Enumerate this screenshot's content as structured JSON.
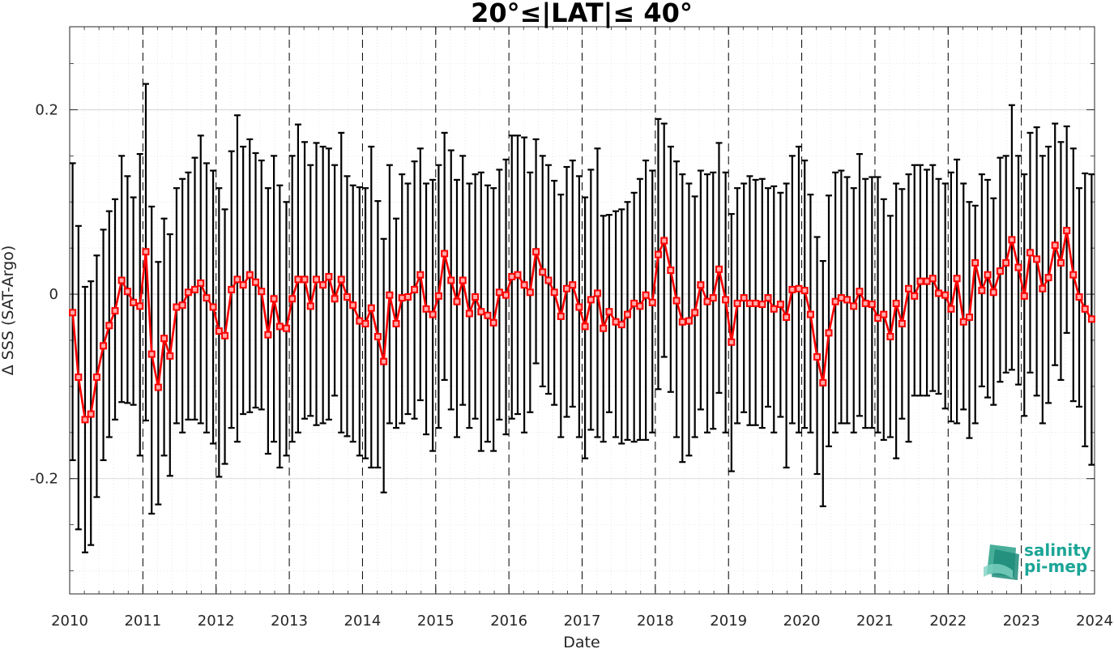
{
  "chart_data": {
    "type": "line",
    "title": "20°≤|LAT|≤ 40°",
    "xlabel": "Date",
    "ylabel": "Δ SSS (SAT-Argo)",
    "xlim": [
      2010,
      2024
    ],
    "ylim": [
      -0.325,
      0.29
    ],
    "x_ticks": [
      "2010",
      "2011",
      "2012",
      "2013",
      "2014",
      "2015",
      "2016",
      "2017",
      "2018",
      "2019",
      "2020",
      "2021",
      "2022",
      "2023",
      "2024"
    ],
    "y_ticks": [
      "0.2",
      "0",
      "-0.2"
    ],
    "y_tick_values": [
      0.2,
      0,
      -0.2
    ],
    "grid": true,
    "year_divider_lines": true,
    "colors": {
      "line": "#ff0000",
      "errorbar": "#000000",
      "grid": "#d9d9d9",
      "divider": "#000000"
    },
    "series": [
      {
        "marker": "square",
        "x": [
          2010.04,
          2010.12,
          2010.21,
          2010.29,
          2010.37,
          2010.46,
          2010.54,
          2010.62,
          2010.71,
          2010.79,
          2010.87,
          2010.96,
          2011.04,
          2011.12,
          2011.21,
          2011.29,
          2011.37,
          2011.46,
          2011.54,
          2011.62,
          2011.71,
          2011.79,
          2011.87,
          2011.96,
          2012.04,
          2012.12,
          2012.21,
          2012.29,
          2012.37,
          2012.46,
          2012.54,
          2012.62,
          2012.71,
          2012.79,
          2012.87,
          2012.96,
          2013.04,
          2013.12,
          2013.21,
          2013.29,
          2013.37,
          2013.46,
          2013.54,
          2013.62,
          2013.71,
          2013.79,
          2013.87,
          2013.96,
          2014.04,
          2014.12,
          2014.21,
          2014.29,
          2014.37,
          2014.46,
          2014.54,
          2014.62,
          2014.71,
          2014.79,
          2014.87,
          2014.96,
          2015.04,
          2015.12,
          2015.21,
          2015.29,
          2015.37,
          2015.46,
          2015.54,
          2015.62,
          2015.71,
          2015.79,
          2015.87,
          2015.96,
          2016.04,
          2016.12,
          2016.21,
          2016.29,
          2016.37,
          2016.46,
          2016.54,
          2016.62,
          2016.71,
          2016.79,
          2016.87,
          2016.96,
          2017.04,
          2017.12,
          2017.21,
          2017.29,
          2017.37,
          2017.46,
          2017.54,
          2017.62,
          2017.71,
          2017.79,
          2017.87,
          2017.96,
          2018.04,
          2018.12,
          2018.21,
          2018.29,
          2018.37,
          2018.46,
          2018.54,
          2018.62,
          2018.71,
          2018.79,
          2018.87,
          2018.96,
          2019.04,
          2019.12,
          2019.21,
          2019.29,
          2019.37,
          2019.46,
          2019.54,
          2019.62,
          2019.71,
          2019.79,
          2019.87,
          2019.96,
          2020.04,
          2020.12,
          2020.21,
          2020.29,
          2020.37,
          2020.46,
          2020.54,
          2020.62,
          2020.71,
          2020.79,
          2020.87,
          2020.96,
          2021.04,
          2021.12,
          2021.21,
          2021.29,
          2021.37,
          2021.46,
          2021.54,
          2021.62,
          2021.71,
          2021.79,
          2021.87,
          2021.96,
          2022.04,
          2022.12,
          2022.21,
          2022.29,
          2022.37,
          2022.46,
          2022.54,
          2022.62,
          2022.71,
          2022.79,
          2022.87,
          2022.96,
          2023.04,
          2023.12,
          2023.21,
          2023.29,
          2023.37,
          2023.46,
          2023.54,
          2023.62,
          2023.71,
          2023.79,
          2023.87,
          2023.96
        ],
        "y": [
          -0.02,
          -0.09,
          -0.136,
          -0.13,
          -0.09,
          -0.056,
          -0.034,
          -0.018,
          0.015,
          0.003,
          -0.009,
          -0.013,
          0.046,
          -0.065,
          -0.101,
          -0.048,
          -0.067,
          -0.014,
          -0.012,
          0.002,
          0.005,
          0.012,
          -0.004,
          -0.014,
          -0.04,
          -0.045,
          0.005,
          0.016,
          0.01,
          0.021,
          0.013,
          0.003,
          -0.044,
          -0.005,
          -0.035,
          -0.037,
          -0.005,
          0.016,
          0.016,
          -0.013,
          0.016,
          0.01,
          0.019,
          -0.005,
          0.016,
          -0.003,
          -0.012,
          -0.029,
          -0.032,
          -0.015,
          -0.046,
          -0.073,
          -0.001,
          -0.032,
          -0.004,
          -0.003,
          0.005,
          0.021,
          -0.016,
          -0.022,
          -0.002,
          0.044,
          0.015,
          -0.008,
          0.015,
          -0.021,
          -0.003,
          -0.019,
          -0.023,
          -0.031,
          0.002,
          -0.001,
          0.019,
          0.021,
          0.01,
          0.002,
          0.046,
          0.024,
          0.015,
          0.002,
          -0.024,
          0.006,
          0.01,
          -0.014,
          -0.035,
          -0.006,
          0.001,
          -0.037,
          -0.019,
          -0.03,
          -0.033,
          -0.022,
          -0.01,
          -0.013,
          -0.001,
          -0.009,
          0.043,
          0.058,
          0.026,
          -0.007,
          -0.03,
          -0.029,
          -0.02,
          0.01,
          -0.008,
          -0.004,
          0.027,
          -0.006,
          -0.052,
          -0.01,
          -0.004,
          -0.01,
          -0.01,
          -0.011,
          -0.004,
          -0.016,
          -0.011,
          -0.025,
          0.005,
          0.006,
          0.004,
          -0.022,
          -0.068,
          -0.096,
          -0.042,
          -0.008,
          -0.004,
          -0.006,
          -0.013,
          0.003,
          -0.01,
          -0.011,
          -0.026,
          -0.022,
          -0.046,
          -0.01,
          -0.032,
          0.006,
          -0.002,
          0.014,
          0.014,
          0.017,
          0.001,
          -0.001,
          -0.016,
          0.017,
          -0.03,
          -0.025,
          0.034,
          0.004,
          0.021,
          0.002,
          0.025,
          0.034,
          0.059,
          0.029,
          -0.002,
          0.045,
          0.038,
          0.006,
          0.018,
          0.053,
          0.034,
          0.069,
          0.021,
          -0.003,
          -0.016,
          -0.027
        ],
        "err_upper": [
          0.142,
          0.074,
          0.008,
          0.014,
          0.042,
          0.07,
          0.09,
          0.103,
          0.15,
          0.128,
          0.105,
          0.152,
          0.228,
          0.095,
          0.035,
          0.082,
          0.065,
          0.115,
          0.125,
          0.132,
          0.148,
          0.172,
          0.142,
          0.134,
          0.115,
          0.092,
          0.155,
          0.194,
          0.16,
          0.168,
          0.153,
          0.145,
          0.115,
          0.15,
          0.118,
          0.1,
          0.15,
          0.184,
          0.165,
          0.14,
          0.164,
          0.16,
          0.158,
          0.14,
          0.175,
          0.128,
          0.118,
          0.116,
          0.115,
          0.16,
          0.101,
          0.06,
          0.14,
          0.082,
          0.13,
          0.12,
          0.144,
          0.158,
          0.12,
          0.124,
          0.14,
          0.175,
          0.156,
          0.124,
          0.15,
          0.12,
          0.13,
          0.132,
          0.118,
          0.115,
          0.135,
          0.146,
          0.172,
          0.172,
          0.17,
          0.132,
          0.168,
          0.15,
          0.14,
          0.123,
          0.108,
          0.138,
          0.145,
          0.128,
          0.105,
          0.135,
          0.158,
          0.085,
          0.086,
          0.09,
          0.092,
          0.1,
          0.11,
          0.125,
          0.145,
          0.134,
          0.19,
          0.185,
          0.16,
          0.144,
          0.13,
          0.12,
          0.106,
          0.134,
          0.13,
          0.132,
          0.164,
          0.132,
          0.087,
          0.115,
          0.12,
          0.128,
          0.124,
          0.125,
          0.115,
          0.117,
          0.11,
          0.12,
          0.15,
          0.16,
          0.145,
          0.108,
          0.062,
          0.036,
          0.107,
          0.132,
          0.134,
          0.127,
          0.115,
          0.152,
          0.125,
          0.127,
          0.127,
          0.103,
          0.085,
          0.12,
          0.114,
          0.13,
          0.14,
          0.14,
          0.135,
          0.14,
          0.125,
          0.12,
          0.132,
          0.146,
          0.12,
          0.1,
          0.096,
          0.13,
          0.124,
          0.104,
          0.148,
          0.15,
          0.205,
          0.15,
          0.13,
          0.175,
          0.181,
          0.15,
          0.16,
          0.185,
          0.165,
          0.182,
          0.158,
          0.115,
          0.131,
          0.13
        ],
        "err_lower": [
          -0.18,
          -0.255,
          -0.28,
          -0.272,
          -0.22,
          -0.18,
          -0.155,
          -0.136,
          -0.117,
          -0.118,
          -0.12,
          -0.175,
          -0.137,
          -0.238,
          -0.228,
          -0.175,
          -0.197,
          -0.14,
          -0.15,
          -0.136,
          -0.136,
          -0.14,
          -0.15,
          -0.162,
          -0.198,
          -0.184,
          -0.145,
          -0.16,
          -0.13,
          -0.128,
          -0.123,
          -0.125,
          -0.173,
          -0.16,
          -0.188,
          -0.175,
          -0.16,
          -0.15,
          -0.135,
          -0.132,
          -0.142,
          -0.14,
          -0.136,
          -0.11,
          -0.15,
          -0.154,
          -0.16,
          -0.175,
          -0.178,
          -0.188,
          -0.188,
          -0.215,
          -0.14,
          -0.145,
          -0.14,
          -0.13,
          -0.135,
          -0.115,
          -0.152,
          -0.17,
          -0.145,
          -0.093,
          -0.125,
          -0.155,
          -0.12,
          -0.145,
          -0.135,
          -0.17,
          -0.16,
          -0.17,
          -0.136,
          -0.152,
          -0.135,
          -0.13,
          -0.15,
          -0.128,
          -0.075,
          -0.1,
          -0.108,
          -0.12,
          -0.155,
          -0.133,
          -0.122,
          -0.155,
          -0.178,
          -0.147,
          -0.155,
          -0.16,
          -0.128,
          -0.155,
          -0.162,
          -0.158,
          -0.16,
          -0.158,
          -0.158,
          -0.15,
          -0.103,
          -0.068,
          -0.106,
          -0.155,
          -0.182,
          -0.175,
          -0.155,
          -0.125,
          -0.15,
          -0.146,
          -0.107,
          -0.15,
          -0.192,
          -0.14,
          -0.128,
          -0.142,
          -0.142,
          -0.145,
          -0.122,
          -0.15,
          -0.133,
          -0.188,
          -0.14,
          -0.15,
          -0.145,
          -0.15,
          -0.195,
          -0.23,
          -0.165,
          -0.15,
          -0.14,
          -0.14,
          -0.15,
          -0.132,
          -0.145,
          -0.145,
          -0.15,
          -0.158,
          -0.155,
          -0.178,
          -0.135,
          -0.16,
          -0.11,
          -0.11,
          -0.11,
          -0.105,
          -0.108,
          -0.124,
          -0.138,
          -0.14,
          -0.125,
          -0.156,
          -0.14,
          -0.1,
          -0.112,
          -0.12,
          -0.095,
          -0.085,
          -0.082,
          -0.098,
          -0.132,
          -0.085,
          -0.11,
          -0.14,
          -0.118,
          -0.077,
          -0.093,
          -0.042,
          -0.116,
          -0.122,
          -0.165,
          -0.185
        ]
      }
    ]
  },
  "logo": {
    "line1": "salinity",
    "line2": "pi-mep"
  }
}
